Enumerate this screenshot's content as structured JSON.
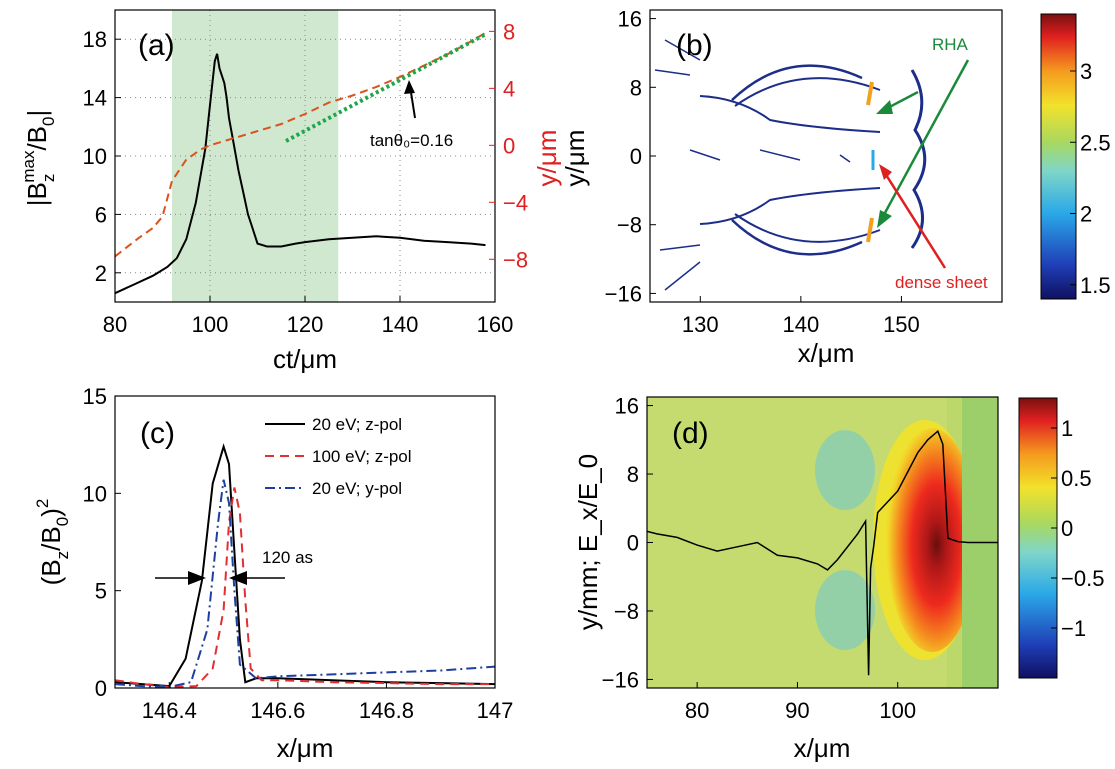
{
  "chart_data": [
    {
      "panel": "a",
      "type": "line",
      "label": "(a)",
      "xlabel": "ct/μm",
      "ylabel_left": "|B_z^max/B_0|",
      "ylabel_right": "y/μm",
      "xlim": [
        80,
        160
      ],
      "ylim_left": [
        0,
        20
      ],
      "ylim_right": [
        -11,
        9.5
      ],
      "xticks": [
        "80",
        "100",
        "120",
        "140",
        "160"
      ],
      "yticks_left": [
        "2",
        "6",
        "10",
        "14",
        "18"
      ],
      "yticks_right": [
        "−8",
        "−4",
        "0",
        "4",
        "8"
      ],
      "grid": true,
      "shaded_region": {
        "x": [
          92,
          127
        ],
        "color": "#cfe8cf"
      },
      "annotation": "tanθ₀=0.16",
      "series": [
        {
          "name": "|Bz max/B0|",
          "axis": "left",
          "color": "#000000",
          "x": [
            80,
            84,
            88,
            91,
            93,
            95,
            97,
            99,
            100,
            101,
            101.5,
            102,
            103,
            103.5,
            104,
            105,
            106,
            107,
            108,
            109,
            110,
            112,
            115,
            118,
            120,
            125,
            130,
            135,
            140,
            145,
            150,
            155,
            158
          ],
          "y": [
            0.6,
            1.2,
            1.8,
            2.4,
            3.0,
            4.3,
            6.8,
            10.5,
            13.5,
            16.5,
            17.0,
            16.0,
            15.0,
            14.0,
            12.6,
            10.8,
            9.0,
            7.5,
            6.0,
            5.0,
            4.0,
            3.8,
            3.8,
            4.0,
            4.1,
            4.3,
            4.4,
            4.5,
            4.4,
            4.2,
            4.1,
            4.0,
            3.9
          ]
        },
        {
          "name": "y/μm",
          "axis": "right",
          "color": "#d9531e",
          "dash": "8,5",
          "x": [
            80,
            85,
            88,
            90,
            92,
            95,
            98,
            100,
            105,
            110,
            115,
            120,
            125,
            130,
            135,
            140,
            145,
            150,
            155,
            158
          ],
          "y": [
            -7.8,
            -6.5,
            -5.8,
            -5.0,
            -2.5,
            -1.0,
            -0.3,
            0.0,
            0.5,
            1.0,
            1.5,
            2.2,
            3.0,
            3.5,
            4.1,
            4.8,
            5.6,
            6.4,
            7.3,
            7.9
          ]
        },
        {
          "name": "tanθ₀ fit",
          "axis": "right",
          "color": "#1fa64a",
          "dash": "3,3",
          "x": [
            116,
            158
          ],
          "y": [
            0.3,
            7.8
          ]
        }
      ]
    },
    {
      "panel": "b",
      "type": "heatmap",
      "label": "(b)",
      "xlabel": "x/μm",
      "ylabel": "y/μm",
      "xlim": [
        125,
        160
      ],
      "ylim": [
        -17,
        17
      ],
      "xticks": [
        "130",
        "140",
        "150"
      ],
      "yticks": [
        "16",
        "8",
        "0",
        "−8",
        "−16"
      ],
      "colorbar": {
        "min": 1.4,
        "max": 3.4,
        "ticks": [
          "3",
          "2.5",
          "2",
          "1.5"
        ],
        "tick_values": [
          3,
          2.5,
          2,
          1.5
        ]
      },
      "annotations": [
        {
          "text": "RHA",
          "color": "#1a8a3a"
        },
        {
          "text": "dense sheet",
          "color": "#e02020"
        }
      ]
    },
    {
      "panel": "c",
      "type": "line",
      "label": "(c)",
      "xlabel": "x/μm",
      "ylabel": "(B_z/B_0)^2",
      "xlim": [
        146.3,
        147
      ],
      "ylim": [
        0,
        15
      ],
      "xticks": [
        "146.4",
        "146.6",
        "146.8",
        "147"
      ],
      "yticks": [
        "0",
        "5",
        "10",
        "15"
      ],
      "annotation": "120 as",
      "series": [
        {
          "name": "20 eV; z-pol",
          "color": "#000000",
          "dash": "",
          "x": [
            146.3,
            146.35,
            146.4,
            146.43,
            146.46,
            146.48,
            146.5,
            146.51,
            146.52,
            146.53,
            146.54,
            146.56,
            146.6,
            146.7,
            146.8,
            146.9,
            147
          ],
          "y": [
            0.3,
            0.2,
            0.1,
            1.5,
            5.5,
            10.5,
            12.4,
            11.5,
            7.0,
            2.5,
            0.3,
            0.5,
            0.5,
            0.4,
            0.3,
            0.25,
            0.2
          ]
        },
        {
          "name": "100 eV; z-pol",
          "color": "#e03030",
          "dash": "9,6",
          "x": [
            146.3,
            146.35,
            146.4,
            146.45,
            146.48,
            146.5,
            146.51,
            146.52,
            146.53,
            146.54,
            146.55,
            146.57,
            146.6,
            146.7,
            146.8,
            146.9,
            147
          ],
          "y": [
            0.4,
            0.2,
            0.05,
            0.1,
            1.0,
            4.0,
            8.5,
            10.3,
            9.0,
            4.5,
            1.0,
            0.4,
            0.4,
            0.3,
            0.25,
            0.2,
            0.2
          ]
        },
        {
          "name": "20 eV; y-pol",
          "color": "#1f3fa0",
          "dash": "10,4,2,4",
          "x": [
            146.3,
            146.35,
            146.4,
            146.44,
            146.47,
            146.49,
            146.5,
            146.51,
            146.52,
            146.53,
            146.56,
            146.6,
            146.7,
            146.8,
            146.9,
            147
          ],
          "y": [
            0.2,
            0.1,
            0.05,
            0.3,
            3.0,
            8.5,
            10.7,
            9.5,
            5.0,
            1.2,
            0.5,
            0.6,
            0.7,
            0.8,
            0.9,
            1.1
          ]
        }
      ]
    },
    {
      "panel": "d",
      "type": "heatmap",
      "label": "(d)",
      "xlabel": "x/μm",
      "ylabel": "y/mm; E_x/E_0",
      "xlim": [
        75,
        110
      ],
      "ylim": [
        -17,
        17
      ],
      "xticks": [
        "80",
        "90",
        "100"
      ],
      "yticks": [
        "16",
        "8",
        "0",
        "−8",
        "−16"
      ],
      "colorbar": {
        "min": -1.5,
        "max": 1.3,
        "ticks": [
          "1",
          "0.5",
          "0",
          "−0.5",
          "−1"
        ],
        "tick_values": [
          1,
          0.5,
          0,
          -0.5,
          -1
        ]
      },
      "series": [
        {
          "name": "on-axis profile",
          "color": "#000000",
          "x": [
            75,
            76,
            78,
            80,
            82,
            84,
            86,
            88,
            90,
            92,
            93,
            94,
            96,
            96.8,
            97.1,
            97.3,
            97.6,
            98,
            100,
            102,
            103,
            104,
            104.5,
            105,
            106,
            107,
            110
          ],
          "y": [
            1.3,
            1.0,
            0.6,
            -0.3,
            -1.0,
            -0.5,
            0.0,
            -1.5,
            -1.8,
            -2.5,
            -3.2,
            -2.0,
            1.0,
            2.5,
            -15.5,
            -3.0,
            -0.5,
            3.5,
            6.0,
            10.5,
            12.0,
            13.0,
            11.5,
            0.5,
            0.1,
            0.0,
            0.0
          ]
        }
      ]
    }
  ]
}
